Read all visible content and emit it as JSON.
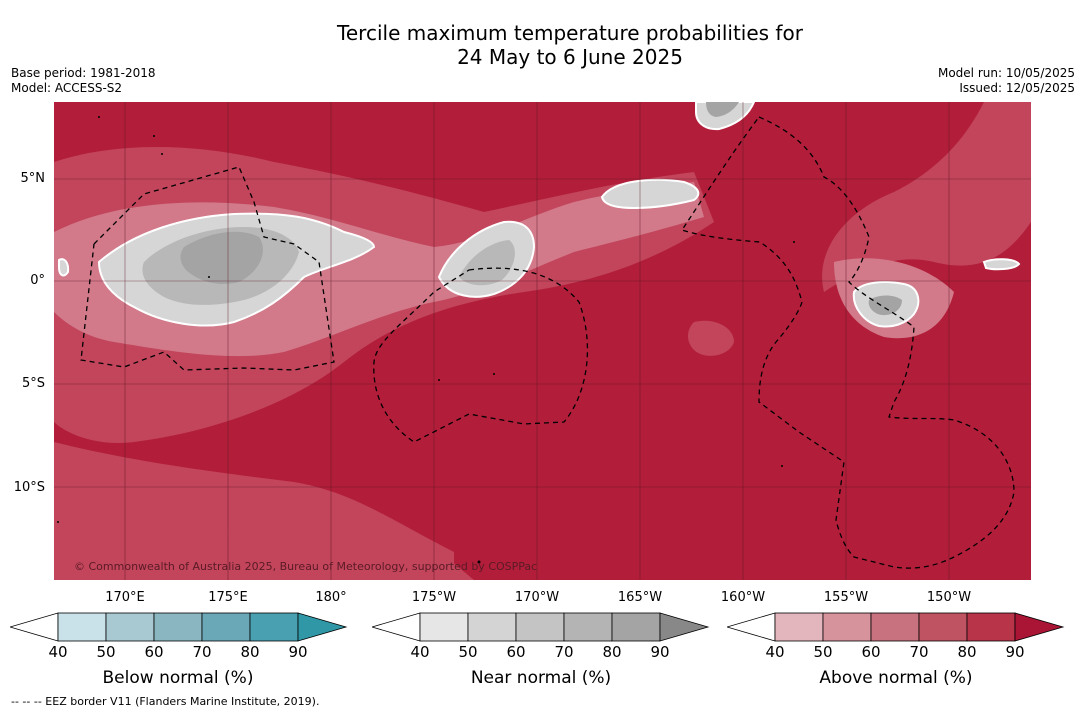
{
  "header": {
    "title_line1": "Tercile maximum temperature probabilities for",
    "title_line2": "24 May to 6 June 2025",
    "base_period": "Base period: 1981-2018",
    "model": "Model: ACCESS-S2",
    "model_run": "Model run: 10/05/2025",
    "issued": "Issued: 12/05/2025"
  },
  "map": {
    "lat_labels": [
      "5°N",
      "0°",
      "5°S",
      "10°S"
    ],
    "lon_labels": [
      "170°E",
      "175°E",
      "180°",
      "175°W",
      "170°W",
      "165°W",
      "160°W",
      "155°W",
      "150°W"
    ],
    "copyright": "© Commonwealth of Australia 2025, Bureau of Meteorology, supported by COSPPac",
    "colors": {
      "above_high": "#b21e3a",
      "above_mid": "#c2455b",
      "above_low": "#d27a8a",
      "near_light": "#d6d6d6",
      "near_mid": "#b8b8b8",
      "near_dark": "#a4a4a4"
    }
  },
  "colorbars": [
    {
      "name": "below-normal",
      "title": "Below normal (%)",
      "ticks": [
        "40",
        "50",
        "60",
        "70",
        "80",
        "90"
      ],
      "colors": [
        "#c9e1e8",
        "#a8c9d1",
        "#8ab6c2",
        "#6aa8b8",
        "#49a0b0",
        "#2f97a6"
      ]
    },
    {
      "name": "near-normal",
      "title": "Near normal (%)",
      "ticks": [
        "40",
        "50",
        "60",
        "70",
        "80",
        "90"
      ],
      "colors": [
        "#e6e6e6",
        "#d4d4d4",
        "#c4c4c4",
        "#b4b4b4",
        "#a4a4a4",
        "#888888"
      ]
    },
    {
      "name": "above-normal",
      "title": "Above normal (%)",
      "ticks": [
        "40",
        "50",
        "60",
        "70",
        "80",
        "90"
      ],
      "colors": [
        "#e3b6bd",
        "#d6939c",
        "#c9727f",
        "#c05362",
        "#b83448",
        "#aa1535"
      ]
    }
  ],
  "footnote": "-- -- -- EEZ border V11 (Flanders Marine Institute, 2019)."
}
